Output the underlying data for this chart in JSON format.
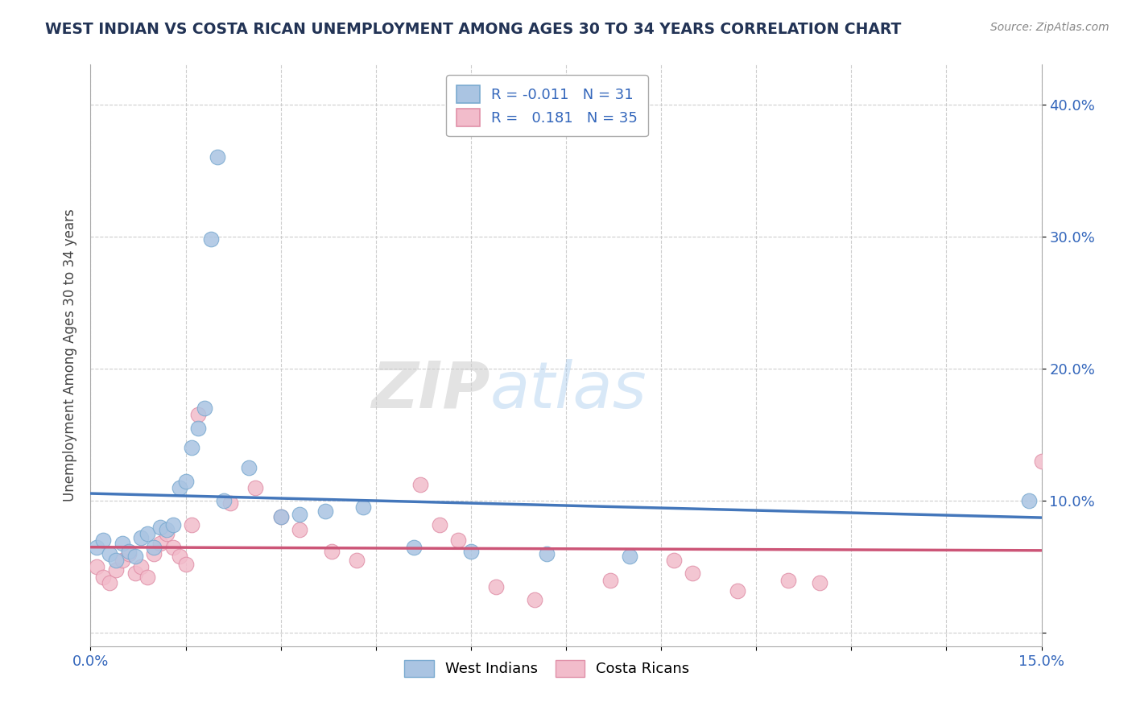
{
  "title": "WEST INDIAN VS COSTA RICAN UNEMPLOYMENT AMONG AGES 30 TO 34 YEARS CORRELATION CHART",
  "source": "Source: ZipAtlas.com",
  "ylabel": "Unemployment Among Ages 30 to 34 years",
  "xlim": [
    0.0,
    0.15
  ],
  "ylim": [
    -0.01,
    0.43
  ],
  "west_indian_color": "#aac4e2",
  "west_indian_edge": "#7aaad0",
  "costa_rican_color": "#f2bccb",
  "costa_rican_edge": "#e090a8",
  "west_indian_line_color": "#4477bb",
  "costa_rican_line_color": "#cc5577",
  "watermark_zip": "ZIP",
  "watermark_atlas": "atlas",
  "background_color": "#ffffff",
  "grid_color": "#c8c8c8",
  "wi_x": [
    0.001,
    0.002,
    0.003,
    0.004,
    0.005,
    0.006,
    0.007,
    0.008,
    0.009,
    0.01,
    0.011,
    0.012,
    0.013,
    0.014,
    0.015,
    0.016,
    0.017,
    0.018,
    0.019,
    0.02,
    0.021,
    0.025,
    0.03,
    0.033,
    0.037,
    0.043,
    0.051,
    0.06,
    0.072,
    0.085,
    0.148
  ],
  "wi_y": [
    0.065,
    0.07,
    0.06,
    0.055,
    0.068,
    0.062,
    0.058,
    0.072,
    0.075,
    0.065,
    0.08,
    0.078,
    0.082,
    0.11,
    0.115,
    0.14,
    0.155,
    0.17,
    0.298,
    0.36,
    0.1,
    0.125,
    0.088,
    0.09,
    0.092,
    0.095,
    0.065,
    0.062,
    0.06,
    0.058,
    0.1
  ],
  "cr_x": [
    0.001,
    0.002,
    0.003,
    0.004,
    0.005,
    0.006,
    0.007,
    0.008,
    0.009,
    0.01,
    0.011,
    0.012,
    0.013,
    0.014,
    0.015,
    0.016,
    0.017,
    0.022,
    0.026,
    0.03,
    0.033,
    0.038,
    0.042,
    0.052,
    0.055,
    0.058,
    0.064,
    0.07,
    0.082,
    0.092,
    0.095,
    0.102,
    0.11,
    0.115,
    0.15
  ],
  "cr_y": [
    0.05,
    0.042,
    0.038,
    0.048,
    0.055,
    0.06,
    0.045,
    0.05,
    0.042,
    0.06,
    0.068,
    0.075,
    0.065,
    0.058,
    0.052,
    0.082,
    0.165,
    0.098,
    0.11,
    0.088,
    0.078,
    0.062,
    0.055,
    0.112,
    0.082,
    0.07,
    0.035,
    0.025,
    0.04,
    0.055,
    0.045,
    0.032,
    0.04,
    0.038,
    0.13
  ]
}
